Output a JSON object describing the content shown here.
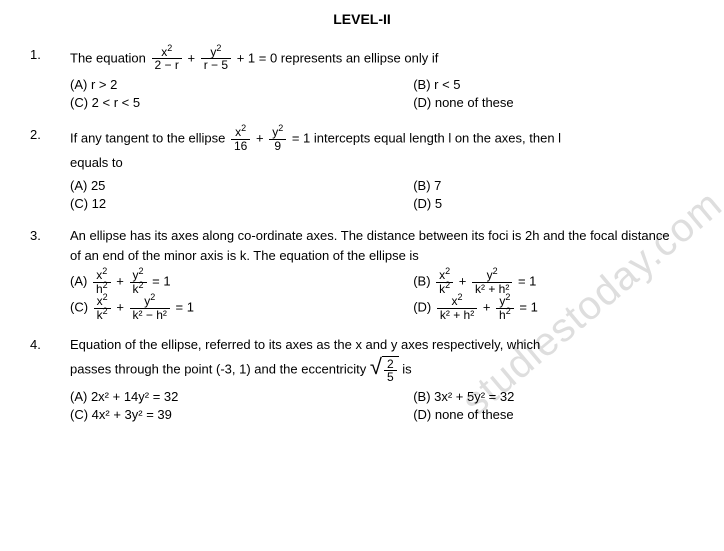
{
  "heading": "LEVEL-II",
  "watermark": "studiestoday.com",
  "questions": [
    {
      "num": "1.",
      "stem_pre": "The  equation ",
      "frac1_num": "x",
      "frac1_num_sup": "2",
      "frac1_den": "2 − r",
      "stem_mid": " + ",
      "frac2_num": "y",
      "frac2_num_sup": "2",
      "frac2_den": "r − 5",
      "stem_post": " + 1 = 0  represents  an ellipse  only if",
      "optA": "(A) r > 2",
      "optB": "(B) r < 5",
      "optC": "(C)  2 < r < 5",
      "optD": "(D) none of these"
    },
    {
      "num": "2.",
      "stem_pre": "If  any tangent  to the ellipse ",
      "frac1_num": "x",
      "frac1_num_sup": "2",
      "frac1_den": "16",
      "stem_mid": " + ",
      "frac2_num": "y",
      "frac2_num_sup": "2",
      "frac2_den": "9",
      "stem_post": " = 1  intercepts  equal length l on the  axes, then  l",
      "stem_line2": "equals  to",
      "optA": "(A)  25",
      "optB": "(B) 7",
      "optC": "(C)  12",
      "optD": "(D) 5"
    },
    {
      "num": "3.",
      "stem_line1": "An ellipse has its axes along co-ordinate axes. The distance between its foci is 2h and the focal distance",
      "stem_line2": "of an end of the minor axis is k. The equation of the ellipse is",
      "optA_pre": "(A) ",
      "optA_f1n": "x",
      "optA_f1ns": "2",
      "optA_f1d": "h",
      "optA_f1ds": "2",
      "optA_plus": " + ",
      "optA_f2n": "y",
      "optA_f2ns": "2",
      "optA_f2d": "k",
      "optA_f2ds": "2",
      "optA_eq": " = 1",
      "optB_pre": "(B) ",
      "optB_f1n": "x",
      "optB_f1ns": "2",
      "optB_f1d": "k",
      "optB_f1ds": "2",
      "optB_plus": " + ",
      "optB_f2n": "y",
      "optB_f2ns": "2",
      "optB_f2d": "k² + h²",
      "optB_eq": " = 1",
      "optC_pre": " (C) ",
      "optC_f1n": "x",
      "optC_f1ns": "2",
      "optC_f1d": "k",
      "optC_f1ds": "2",
      "optC_plus": " + ",
      "optC_f2n": "y",
      "optC_f2ns": "2",
      "optC_f2d": "k² − h²",
      "optC_eq": " = 1",
      "optD_pre": "(D) ",
      "optD_f1n": "x",
      "optD_f1ns": "2",
      "optD_f1d": "k² + h²",
      "optD_plus": " + ",
      "optD_f2n": "y",
      "optD_f2ns": "2",
      "optD_f2d": "h",
      "optD_f2ds": "2",
      "optD_eq": " = 1"
    },
    {
      "num": "4.",
      "stem_line1": "Equation of the ellipse, referred to its axes as the x and y axes  respectively, which",
      "stem_line2_pre": "passes through the point (-3, 1) and the eccentricity ",
      "sqrt_num": "2",
      "sqrt_den": "5",
      "stem_line2_post": "  is",
      "optA": "(A) 2x² + 14y² = 32",
      "optB": "(B) 3x² + 5y² = 32",
      "optC": "(C) 4x² + 3y² = 39",
      "optD": "(D) none of these"
    }
  ]
}
